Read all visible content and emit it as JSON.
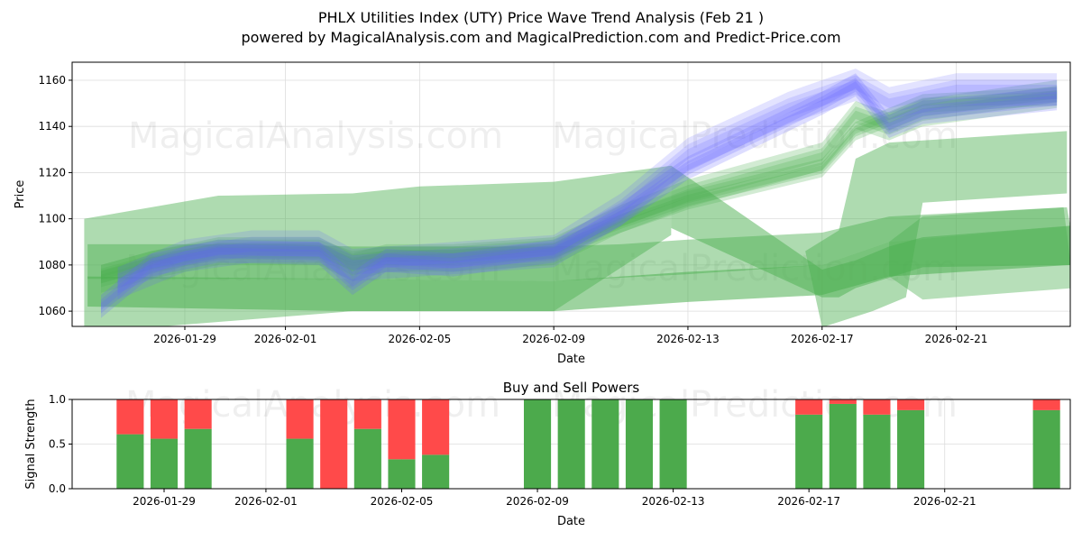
{
  "title": "PHLX Utilities Index (UTY) Price Wave Trend Analysis (Feb 21 )",
  "subtitle": "powered by MagicalAnalysis.com and MagicalPrediction.com and Predict-Price.com",
  "watermarks": [
    "MagicalAnalysis.com",
    "MagicalPrediction.com"
  ],
  "colors": {
    "green": "#4caf50",
    "blue": "#6666ff",
    "buy": "#4caa4c",
    "sell": "#ff4a4a",
    "grid": "#dddddd"
  },
  "chart_data": [
    {
      "type": "area",
      "title": "",
      "xlabel": "Date",
      "ylabel": "Price",
      "x_unit": "days since 2026-01-29",
      "xlim": [
        -3.36,
        26.4
      ],
      "ylim": [
        1053.4,
        1167.8
      ],
      "xticks": [
        {
          "v": 0,
          "label": "2026-01-29"
        },
        {
          "v": 3,
          "label": "2026-02-01"
        },
        {
          "v": 7,
          "label": "2026-02-05"
        },
        {
          "v": 11,
          "label": "2026-02-09"
        },
        {
          "v": 15,
          "label": "2026-02-13"
        },
        {
          "v": 19,
          "label": "2026-02-17"
        },
        {
          "v": 23,
          "label": "2026-02-21"
        }
      ],
      "yticks": [
        1060,
        1080,
        1100,
        1120,
        1140,
        1160
      ],
      "grid": true,
      "bands": [
        {
          "color": "green",
          "opacity": 0.45,
          "upper": [
            [
              -3,
              1100
            ],
            [
              -1,
              1105
            ],
            [
              1,
              1110
            ],
            [
              5,
              1111
            ],
            [
              7,
              1114
            ],
            [
              11,
              1116
            ],
            [
              13,
              1120
            ],
            [
              14.5,
              1123
            ]
          ],
          "lower": [
            [
              -3,
              1053
            ],
            [
              -1,
              1053
            ],
            [
              5,
              1060
            ],
            [
              11,
              1060
            ],
            [
              14.5,
              1093
            ]
          ]
        },
        {
          "color": "green",
          "opacity": 0.45,
          "upper": [
            [
              -2.9,
              1089
            ],
            [
              3,
              1089
            ],
            [
              5,
              1088
            ],
            [
              11,
              1088
            ],
            [
              13,
              1089
            ],
            [
              15,
              1091
            ],
            [
              19,
              1094
            ],
            [
              21,
              1101
            ],
            [
              26.3,
              1105
            ]
          ],
          "lower": [
            [
              -2.9,
              1074
            ],
            [
              5,
              1074
            ],
            [
              11,
              1073
            ],
            [
              15,
              1076
            ],
            [
              19,
              1080
            ],
            [
              21,
              1090
            ],
            [
              26.4,
              1097
            ]
          ]
        },
        {
          "color": "green",
          "opacity": 0.55,
          "upper": [
            [
              -2.9,
              1075
            ],
            [
              5,
              1074
            ],
            [
              11,
              1073
            ],
            [
              15,
              1077
            ],
            [
              19,
              1080
            ],
            [
              21,
              1090
            ],
            [
              26.4,
              1097
            ]
          ],
          "lower": [
            [
              -2.9,
              1062
            ],
            [
              5,
              1060
            ],
            [
              11,
              1060
            ],
            [
              15,
              1064
            ],
            [
              19,
              1067
            ],
            [
              21,
              1075
            ],
            [
              26.4,
              1080
            ]
          ]
        },
        {
          "color": "green",
          "opacity": 0.5,
          "upper": [
            [
              14.5,
              1123
            ],
            [
              19,
              1078
            ],
            [
              20,
              1082
            ],
            [
              21,
              1088
            ],
            [
              22,
              1092
            ],
            [
              26.4,
              1097
            ]
          ],
          "lower": [
            [
              14.5,
              1096
            ],
            [
              19,
              1066
            ],
            [
              19.5,
              1066
            ],
            [
              20,
              1070
            ],
            [
              22,
              1079
            ],
            [
              26.4,
              1080
            ]
          ]
        },
        {
          "color": "green",
          "opacity": 0.45,
          "upper": [
            [
              18.5,
              1086
            ],
            [
              19.5,
              1095
            ],
            [
              20,
              1126
            ],
            [
              21,
              1133
            ],
            [
              26.3,
              1138
            ]
          ],
          "lower": [
            [
              19,
              1053
            ],
            [
              20.5,
              1060
            ],
            [
              21.5,
              1066
            ],
            [
              22,
              1107
            ],
            [
              26.3,
              1111
            ]
          ]
        },
        {
          "color": "green",
          "opacity": 0.4,
          "upper": [
            [
              21,
              1090
            ],
            [
              22,
              1101
            ],
            [
              26.2,
              1105
            ]
          ],
          "lower": [
            [
              21,
              1075
            ],
            [
              22,
              1065
            ],
            [
              26.5,
              1070
            ]
          ]
        }
      ],
      "trend_paths": [
        {
          "color": "green",
          "opacity": 0.25,
          "spread": 6,
          "points": [
            [
              -2.5,
              1074
            ],
            [
              -1,
              1080
            ],
            [
              1,
              1086
            ],
            [
              4,
              1086
            ],
            [
              5,
              1079
            ],
            [
              6,
              1083
            ],
            [
              8,
              1083
            ],
            [
              11,
              1086
            ],
            [
              13,
              1100
            ],
            [
              15,
              1111
            ],
            [
              19,
              1127
            ],
            [
              20,
              1145
            ],
            [
              21,
              1140
            ],
            [
              22,
              1146
            ],
            [
              26,
              1154
            ]
          ]
        },
        {
          "color": "green",
          "opacity": 0.25,
          "spread": 4,
          "points": [
            [
              -2.5,
              1076
            ],
            [
              -1,
              1082
            ],
            [
              1,
              1087
            ],
            [
              4,
              1087
            ],
            [
              5,
              1082
            ],
            [
              6,
              1084
            ],
            [
              8,
              1084
            ],
            [
              11,
              1087
            ],
            [
              13,
              1098
            ],
            [
              15,
              1108
            ],
            [
              19,
              1122
            ],
            [
              20,
              1138
            ],
            [
              21,
              1144
            ],
            [
              22,
              1150
            ],
            [
              26,
              1153
            ]
          ]
        },
        {
          "color": "blue",
          "opacity": 0.22,
          "spread": 5,
          "points": [
            [
              -2.5,
              1062
            ],
            [
              -1,
              1080
            ],
            [
              1,
              1086
            ],
            [
              4,
              1085
            ],
            [
              5,
              1072
            ],
            [
              6,
              1082
            ],
            [
              8,
              1080
            ],
            [
              11,
              1086
            ],
            [
              13,
              1102
            ],
            [
              15,
              1122
            ],
            [
              19,
              1150
            ],
            [
              20,
              1158
            ],
            [
              21,
              1140
            ],
            [
              22,
              1146
            ],
            [
              26,
              1152
            ]
          ]
        },
        {
          "color": "blue",
          "opacity": 0.18,
          "spread": 7,
          "points": [
            [
              -2,
              1072
            ],
            [
              0,
              1084
            ],
            [
              2,
              1088
            ],
            [
              4,
              1088
            ],
            [
              5,
              1080
            ],
            [
              7,
              1082
            ],
            [
              11,
              1086
            ],
            [
              13,
              1104
            ],
            [
              15,
              1128
            ],
            [
              18,
              1148
            ],
            [
              20,
              1158
            ],
            [
              21,
              1150
            ],
            [
              23,
              1156
            ],
            [
              26,
              1156
            ]
          ]
        }
      ]
    },
    {
      "type": "bar",
      "title": "Buy and Sell Powers",
      "xlabel": "Date",
      "ylabel": "Signal Strength",
      "x_unit": "days since 2026-01-29",
      "xlim": [
        -2.71,
        26.7
      ],
      "ylim": [
        0,
        1
      ],
      "yticks": [
        {
          "v": 0,
          "label": "0.0"
        },
        {
          "v": 0.5,
          "label": "0.5"
        },
        {
          "v": 1,
          "label": "1.0"
        }
      ],
      "xticks": [
        {
          "v": 0,
          "label": "2026-01-29"
        },
        {
          "v": 3,
          "label": "2026-02-01"
        },
        {
          "v": 7,
          "label": "2026-02-05"
        },
        {
          "v": 11,
          "label": "2026-02-09"
        },
        {
          "v": 15,
          "label": "2026-02-13"
        },
        {
          "v": 19,
          "label": "2026-02-17"
        },
        {
          "v": 23,
          "label": "2026-02-21"
        }
      ],
      "categories": [
        "2026-01-28",
        "2026-01-29",
        "2026-01-30",
        "2026-02-02",
        "2026-02-03",
        "2026-02-04",
        "2026-02-05",
        "2026-02-06",
        "2026-02-09",
        "2026-02-10",
        "2026-02-11",
        "2026-02-12",
        "2026-02-13",
        "2026-02-17",
        "2026-02-18",
        "2026-02-19",
        "2026-02-20",
        "2026-02-24"
      ],
      "x": [
        -1,
        0,
        1,
        4,
        5,
        6,
        7,
        8,
        11,
        12,
        13,
        14,
        15,
        19,
        20,
        21,
        22,
        26
      ],
      "series": [
        {
          "name": "Buy",
          "values": [
            0.61,
            0.56,
            0.67,
            0.56,
            0.0,
            0.67,
            0.33,
            0.38,
            1,
            1,
            1,
            1,
            1,
            0.83,
            0.95,
            0.83,
            0.88,
            0.88
          ]
        },
        {
          "name": "Sell",
          "values": [
            0.39,
            0.44,
            0.33,
            0.44,
            1.0,
            0.33,
            0.67,
            0.62,
            0,
            0,
            0,
            0,
            0,
            0.17,
            0.05,
            0.17,
            0.12,
            0.12
          ]
        }
      ]
    }
  ]
}
